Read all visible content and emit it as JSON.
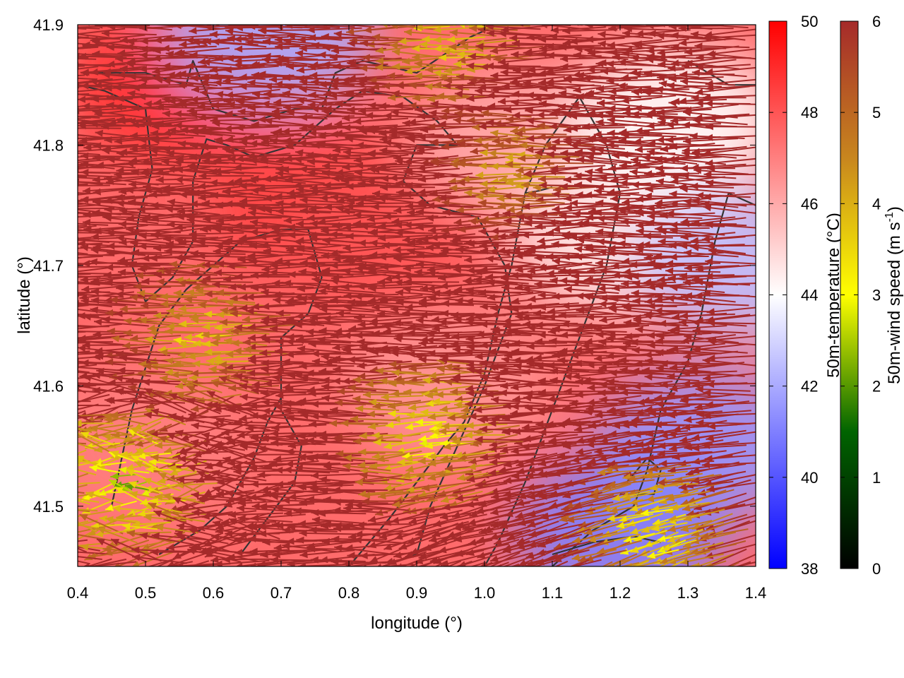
{
  "chart_data": {
    "type": "heatmap",
    "title": "",
    "xlabel": "longitude (°)",
    "ylabel": "latitude (°)",
    "xlim": [
      0.4,
      1.4
    ],
    "ylim": [
      41.45,
      41.9
    ],
    "x_ticks": [
      "0.4",
      "0.5",
      "0.6",
      "0.7",
      "0.8",
      "0.9",
      "1.0",
      "1.1",
      "1.2",
      "1.3",
      "1.4"
    ],
    "y_ticks": [
      "41.5",
      "41.6",
      "41.7",
      "41.8",
      "41.9"
    ],
    "temperature_colorbar": {
      "label": "50m-temperature (°C)",
      "range": [
        38,
        50
      ],
      "ticks": [
        "38",
        "40",
        "42",
        "44",
        "46",
        "48",
        "50"
      ],
      "colors": [
        "#0000ff",
        "#ffffff",
        "#ff0000"
      ]
    },
    "wind_colorbar": {
      "label_main": "50m-wind speed (m s",
      "label_sup": "-1",
      "label_end": ")",
      "range": [
        0,
        6
      ],
      "ticks": [
        "0",
        "1",
        "2",
        "3",
        "4",
        "5",
        "6"
      ],
      "colors": [
        "#000000",
        "#006400",
        "#ffff00",
        "#c8861e",
        "#a52a2a"
      ]
    },
    "temperature_field_notes": "Mostly 45-49 °C (red/pink); cooler (40-43 °C, blue) in the south-east around lon 1.1-1.4, lat 41.45-41.6 and the east edge near lon 1.35-1.4, lat 41.7",
    "temperature_zones": [
      {
        "center": [
          0.75,
          41.75
        ],
        "value": 48.5
      },
      {
        "center": [
          0.55,
          41.85
        ],
        "value": 49
      },
      {
        "center": [
          0.85,
          41.72
        ],
        "value": 48
      },
      {
        "center": [
          0.5,
          41.55
        ],
        "value": 47
      },
      {
        "center": [
          0.95,
          41.6
        ],
        "value": 46.5
      },
      {
        "center": [
          1.05,
          41.8
        ],
        "value": 46
      },
      {
        "center": [
          1.2,
          41.72
        ],
        "value": 44.5
      },
      {
        "center": [
          1.32,
          41.55
        ],
        "value": 41.5
      },
      {
        "center": [
          1.2,
          41.48
        ],
        "value": 41
      },
      {
        "center": [
          1.38,
          41.7
        ],
        "value": 42.5
      },
      {
        "center": [
          0.68,
          41.89
        ],
        "value": 42
      },
      {
        "center": [
          1.28,
          41.82
        ],
        "value": 44
      }
    ],
    "wind_field_notes": "Dominant flow toward the west (arrows pointing left), strongest (~6 m/s) across most of the domain; weaker 1-4 m/s (green/yellow) in the south-west corner and patches along the north edge and around lon 0.9-1.1, lat 41.55",
    "weak_wind_zones": [
      {
        "center": [
          0.5,
          41.52
        ],
        "speed": 2.5
      },
      {
        "center": [
          0.62,
          41.64
        ],
        "speed": 3.5
      },
      {
        "center": [
          0.95,
          41.56
        ],
        "speed": 3
      },
      {
        "center": [
          1.28,
          41.48
        ],
        "speed": 3
      },
      {
        "center": [
          0.98,
          41.89
        ],
        "speed": 3.5
      },
      {
        "center": [
          1.08,
          41.78
        ],
        "speed": 4
      }
    ],
    "contours": [
      [
        [
          0.42,
          41.86
        ],
        [
          0.5,
          41.86
        ],
        [
          0.56,
          41.85
        ],
        [
          0.57,
          41.87
        ],
        [
          0.6,
          41.83
        ],
        [
          0.66,
          41.82
        ],
        [
          0.72,
          41.83
        ],
        [
          0.76,
          41.83
        ],
        [
          0.78,
          41.86
        ],
        [
          0.82,
          41.87
        ],
        [
          0.9,
          41.86
        ],
        [
          0.98,
          41.89
        ],
        [
          1.02,
          41.9
        ]
      ],
      [
        [
          0.4,
          41.85
        ],
        [
          0.44,
          41.845
        ],
        [
          0.5,
          41.83
        ],
        [
          0.51,
          41.78
        ],
        [
          0.49,
          41.74
        ],
        [
          0.48,
          41.7
        ],
        [
          0.5,
          41.67
        ],
        [
          0.54,
          41.69
        ],
        [
          0.57,
          41.72
        ],
        [
          0.57,
          41.77
        ],
        [
          0.59,
          41.805
        ],
        [
          0.62,
          41.8
        ],
        [
          0.66,
          41.79
        ],
        [
          0.72,
          41.8
        ],
        [
          0.78,
          41.83
        ],
        [
          0.82,
          41.845
        ],
        [
          0.88,
          41.84
        ],
        [
          0.93,
          41.82
        ],
        [
          0.96,
          41.8
        ],
        [
          0.9,
          41.8
        ],
        [
          0.88,
          41.77
        ],
        [
          0.92,
          41.75
        ],
        [
          0.99,
          41.74
        ],
        [
          1.03,
          41.7
        ],
        [
          1.04,
          41.66
        ],
        [
          1.0,
          41.6
        ],
        [
          0.96,
          41.55
        ],
        [
          0.92,
          41.5
        ],
        [
          0.9,
          41.46
        ],
        [
          0.85,
          41.45
        ]
      ],
      [
        [
          0.45,
          41.5
        ],
        [
          0.48,
          41.58
        ],
        [
          0.52,
          41.65
        ],
        [
          0.56,
          41.68
        ],
        [
          0.6,
          41.7
        ],
        [
          0.64,
          41.72
        ],
        [
          0.7,
          41.73
        ],
        [
          0.74,
          41.73
        ],
        [
          0.76,
          41.69
        ],
        [
          0.74,
          41.66
        ],
        [
          0.7,
          41.64
        ],
        [
          0.7,
          41.58
        ],
        [
          0.73,
          41.55
        ],
        [
          0.72,
          41.52
        ],
        [
          0.68,
          41.49
        ],
        [
          0.64,
          41.46
        ]
      ],
      [
        [
          0.52,
          41.46
        ],
        [
          0.58,
          41.48
        ],
        [
          0.62,
          41.5
        ],
        [
          0.66,
          41.54
        ],
        [
          0.68,
          41.57
        ],
        [
          0.7,
          41.59
        ]
      ],
      [
        [
          0.8,
          41.45
        ],
        [
          0.86,
          41.49
        ],
        [
          0.9,
          41.52
        ],
        [
          0.94,
          41.55
        ],
        [
          0.97,
          41.57
        ],
        [
          1.0,
          41.61
        ],
        [
          1.02,
          41.66
        ],
        [
          1.04,
          41.7
        ],
        [
          1.06,
          41.76
        ],
        [
          1.09,
          41.8
        ],
        [
          1.14,
          41.84
        ],
        [
          1.18,
          41.8
        ],
        [
          1.2,
          41.76
        ],
        [
          1.18,
          41.7
        ],
        [
          1.14,
          41.64
        ],
        [
          1.1,
          41.58
        ],
        [
          1.06,
          41.52
        ],
        [
          1.02,
          41.47
        ],
        [
          1.0,
          41.45
        ]
      ],
      [
        [
          1.1,
          41.45
        ],
        [
          1.16,
          41.48
        ],
        [
          1.22,
          41.5
        ],
        [
          1.24,
          41.53
        ],
        [
          1.26,
          41.58
        ],
        [
          1.3,
          41.62
        ],
        [
          1.32,
          41.66
        ],
        [
          1.34,
          41.72
        ],
        [
          1.36,
          41.76
        ],
        [
          1.4,
          41.75
        ]
      ],
      [
        [
          1.2,
          41.51
        ],
        [
          1.25,
          41.51
        ],
        [
          1.26,
          41.53
        ],
        [
          1.24,
          41.54
        ],
        [
          1.21,
          41.52
        ]
      ],
      [
        [
          1.1,
          41.46
        ],
        [
          1.16,
          41.47
        ],
        [
          1.22,
          41.475
        ],
        [
          1.26,
          41.47
        ]
      ],
      [
        [
          1.3,
          41.87
        ],
        [
          1.33,
          41.86
        ],
        [
          1.36,
          41.85
        ],
        [
          1.4,
          41.85
        ]
      ],
      [
        [
          1.06,
          41.76
        ],
        [
          1.08,
          41.762
        ],
        [
          1.1,
          41.765
        ]
      ]
    ]
  }
}
